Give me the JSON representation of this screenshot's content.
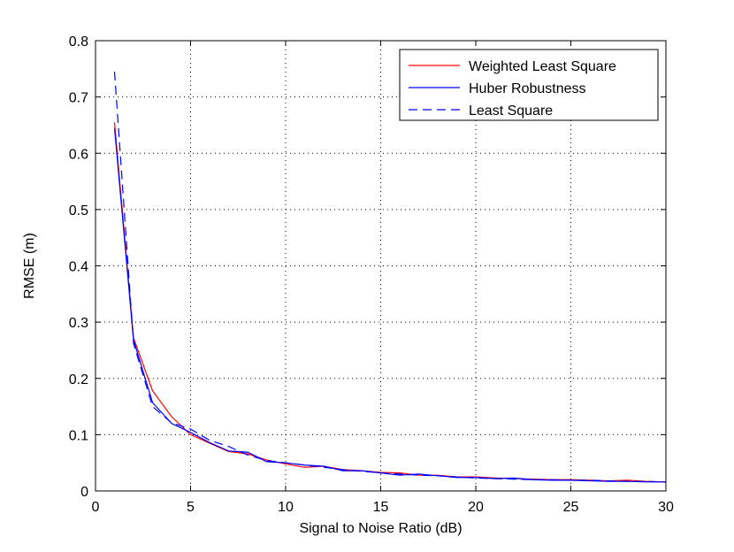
{
  "chart_data": {
    "type": "line",
    "title": "",
    "xlabel": "Signal to Noise Ratio (dB)",
    "ylabel": "RMSE (m)",
    "xlim": [
      0,
      30
    ],
    "ylim": [
      0,
      0.8
    ],
    "xticks": [
      0,
      5,
      10,
      15,
      20,
      25,
      30
    ],
    "yticks": [
      0,
      0.1,
      0.2,
      0.3,
      0.4,
      0.5,
      0.6,
      0.7,
      0.8
    ],
    "xtick_labels": [
      "0",
      "5",
      "10",
      "15",
      "20",
      "25",
      "30"
    ],
    "ytick_labels": [
      "0",
      "0.1",
      "0.2",
      "0.3",
      "0.4",
      "0.5",
      "0.6",
      "0.7",
      "0.8"
    ],
    "grid": true,
    "legend_position": "top-right",
    "x": [
      1,
      2,
      3,
      4,
      5,
      6,
      7,
      8,
      9,
      10,
      11,
      12,
      13,
      14,
      15,
      16,
      17,
      18,
      19,
      20,
      21,
      22,
      23,
      24,
      25,
      26,
      27,
      28,
      29,
      30
    ],
    "series": [
      {
        "name": "Weighted Least Square",
        "color": "#ff0000",
        "dash": "solid",
        "values": [
          0.655,
          0.272,
          0.178,
          0.132,
          0.1,
          0.085,
          0.07,
          0.066,
          0.055,
          0.048,
          0.042,
          0.044,
          0.038,
          0.036,
          0.033,
          0.032,
          0.028,
          0.028,
          0.025,
          0.025,
          0.023,
          0.022,
          0.021,
          0.02,
          0.02,
          0.019,
          0.018,
          0.019,
          0.017,
          0.016
        ]
      },
      {
        "name": "Huber Robustness",
        "color": "#0000ff",
        "dash": "solid",
        "values": [
          0.645,
          0.268,
          0.157,
          0.12,
          0.104,
          0.086,
          0.071,
          0.069,
          0.052,
          0.05,
          0.046,
          0.044,
          0.036,
          0.036,
          0.032,
          0.028,
          0.03,
          0.027,
          0.024,
          0.024,
          0.022,
          0.023,
          0.02,
          0.019,
          0.019,
          0.018,
          0.017,
          0.017,
          0.016,
          0.016
        ]
      },
      {
        "name": "Least Square",
        "color": "#0000ff",
        "dash": "dashed",
        "values": [
          0.745,
          0.262,
          0.15,
          0.121,
          0.11,
          0.09,
          0.079,
          0.064,
          0.054,
          0.05,
          0.046,
          0.042,
          0.038,
          0.035,
          0.032,
          0.03,
          0.028,
          0.027,
          0.025,
          0.023,
          0.022,
          0.021,
          0.02,
          0.02,
          0.019,
          0.019,
          0.018,
          0.017,
          0.017,
          0.016
        ]
      }
    ]
  }
}
